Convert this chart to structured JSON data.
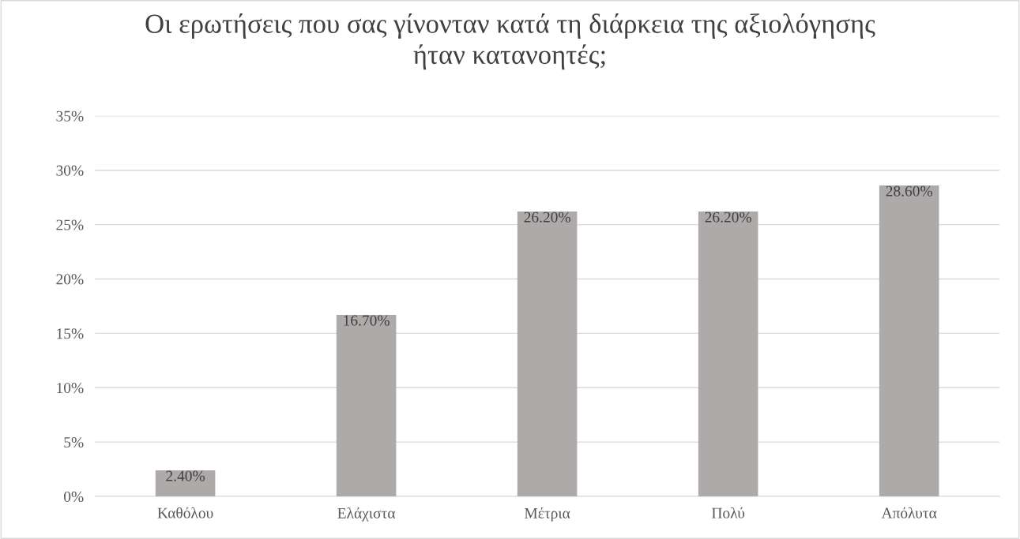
{
  "chart_data": {
    "type": "bar",
    "title": "Οι ερωτήσεις που σας γίνονταν κατά τη διάρκεια της αξιολόγησης\nήταν κατανοητές;",
    "categories": [
      "Καθόλου",
      "Ελάχιστα",
      "Μέτρια",
      "Πολύ",
      "Απόλυτα"
    ],
    "values": [
      2.4,
      16.7,
      26.2,
      26.2,
      28.6
    ],
    "value_labels": [
      "2.40%",
      "16.70%",
      "26.20%",
      "26.20%",
      "28.60%"
    ],
    "color": "#aeaaaa",
    "ylim": [
      0,
      35
    ],
    "yticks": [
      {
        "value": 0,
        "label": "0%"
      },
      {
        "value": 5,
        "label": "5%"
      },
      {
        "value": 10,
        "label": "10%"
      },
      {
        "value": 15,
        "label": "15%"
      },
      {
        "value": 20,
        "label": "20%"
      },
      {
        "value": 25,
        "label": "25%"
      },
      {
        "value": 30,
        "label": "30%"
      },
      {
        "value": 35,
        "label": "35%"
      }
    ],
    "grid": "y",
    "legend": false
  }
}
